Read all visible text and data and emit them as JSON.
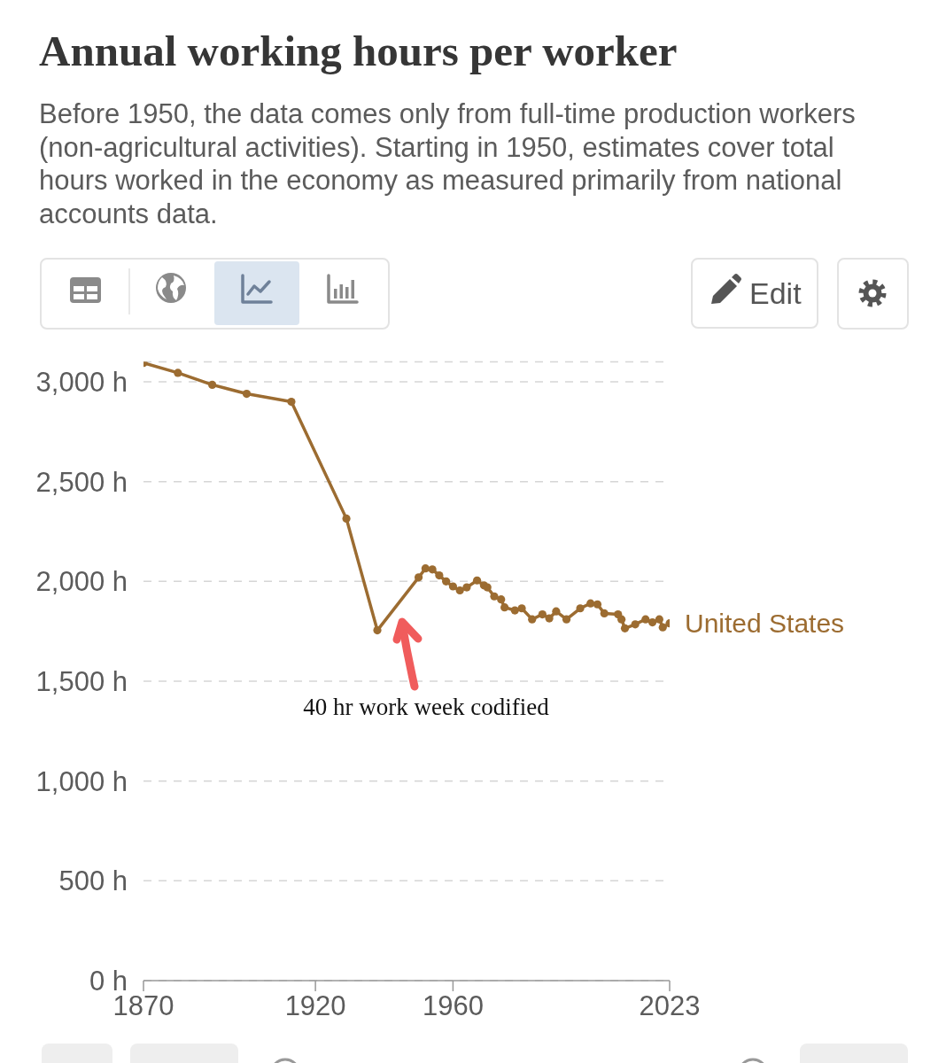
{
  "chart_data": {
    "type": "line",
    "title": "Annual working hours per worker",
    "subtitle": "Before 1950, the data comes only from full-time production workers (non-agricultural activities). Starting in 1950, estimates cover total hours worked in the economy as measured primarily from national accounts data.",
    "annotations": [
      "40 hr work week codified",
      "Edit"
    ],
    "x": [
      1870,
      1880,
      1890,
      1900,
      1913,
      1929,
      1938,
      1950,
      1952,
      1954,
      1956,
      1958,
      1960,
      1962,
      1964,
      1967,
      1969,
      1970,
      1972,
      1974,
      1975,
      1978,
      1980,
      1983,
      1986,
      1988,
      1990,
      1993,
      1997,
      2000,
      2002,
      2004,
      2008,
      2009,
      2010,
      2013,
      2016,
      2018,
      2020,
      2021,
      2023
    ],
    "series": [
      {
        "name": "United States",
        "color": "#9c6c31",
        "values": [
          3095,
          3045,
          2985,
          2940,
          2900,
          2315,
          1755,
          2020,
          2065,
          2060,
          2030,
          2000,
          1975,
          1955,
          1970,
          2005,
          1980,
          1970,
          1925,
          1910,
          1870,
          1855,
          1865,
          1810,
          1835,
          1815,
          1850,
          1810,
          1865,
          1890,
          1885,
          1840,
          1835,
          1810,
          1765,
          1785,
          1810,
          1795,
          1810,
          1770,
          1790
        ]
      }
    ],
    "xlim": [
      1870,
      2023
    ],
    "xticks": [
      1870,
      1920,
      1960,
      2023
    ],
    "ylim": [
      0,
      3100
    ],
    "yticks": [
      {
        "value": 0,
        "label": "0 h"
      },
      {
        "value": 500,
        "label": "500 h"
      },
      {
        "value": 1000,
        "label": "1,000 h"
      },
      {
        "value": 1500,
        "label": "1,500 h"
      },
      {
        "value": 2000,
        "label": "2,000 h"
      },
      {
        "value": 2500,
        "label": "2,500 h"
      },
      {
        "value": 3000,
        "label": "3,000 h"
      }
    ],
    "grid": "y",
    "marker": "circle",
    "line_style": "solid"
  }
}
